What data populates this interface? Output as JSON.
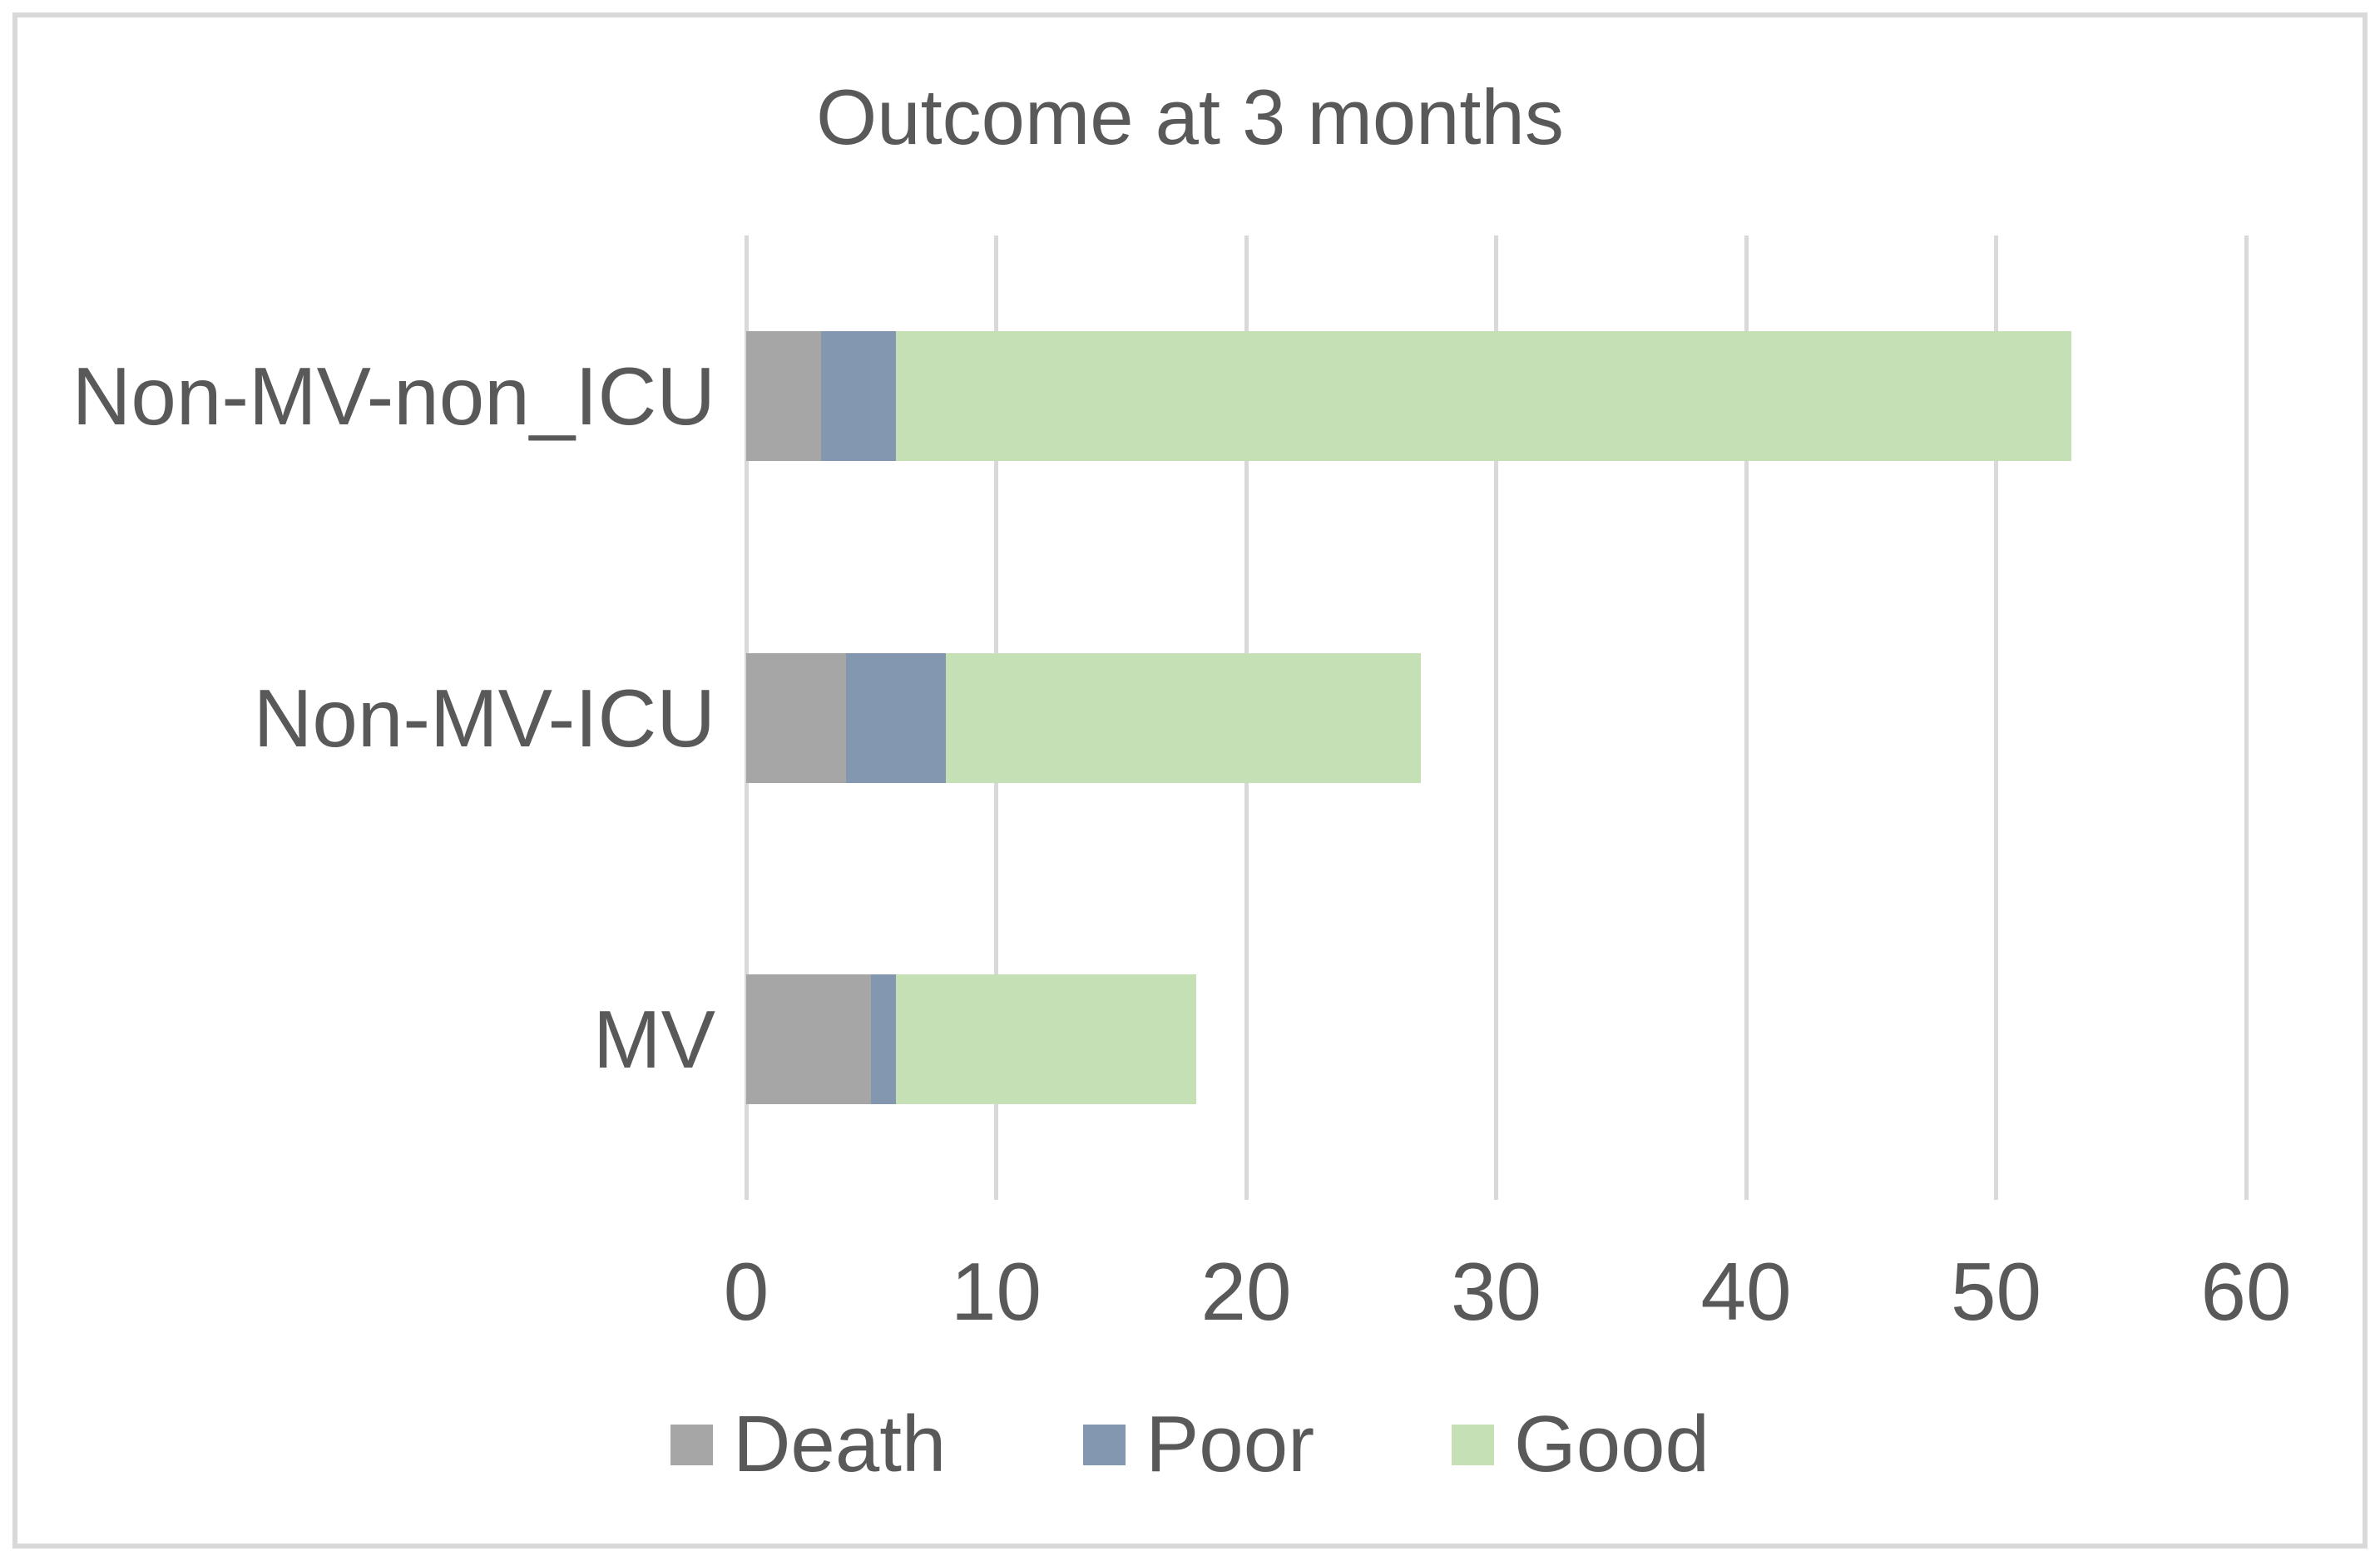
{
  "chart": {
    "title": "Outcome at 3 months",
    "colors": {
      "death": "#A6A6A6",
      "poor": "#8497B0",
      "good": "#C5E0B4",
      "gridline": "#D9D9D9",
      "text": "#595959",
      "frame_border": "#D9D9D9",
      "background": "#FFFFFF"
    }
  },
  "chart_data": {
    "type": "bar",
    "orientation": "horizontal",
    "stacked": true,
    "title": "Outcome at 3 months",
    "categories": [
      "Non-MV-non_ICU",
      "Non-MV-ICU",
      "MV"
    ],
    "series": [
      {
        "name": "Death",
        "color": "#A6A6A6",
        "values": [
          3,
          4,
          5
        ]
      },
      {
        "name": "Poor",
        "color": "#8497B0",
        "values": [
          3,
          4,
          1
        ]
      },
      {
        "name": "Good",
        "color": "#C5E0B4",
        "values": [
          47,
          19,
          12
        ]
      }
    ],
    "stack_totals": [
      53,
      27,
      18
    ],
    "xlabel": "",
    "ylabel": "",
    "xlim": [
      0,
      60
    ],
    "xticks": [
      0,
      10,
      20,
      30,
      40,
      50,
      60
    ],
    "grid": "vertical-only",
    "legend_position": "bottom",
    "legend_entries": [
      "Death",
      "Poor",
      "Good"
    ]
  }
}
